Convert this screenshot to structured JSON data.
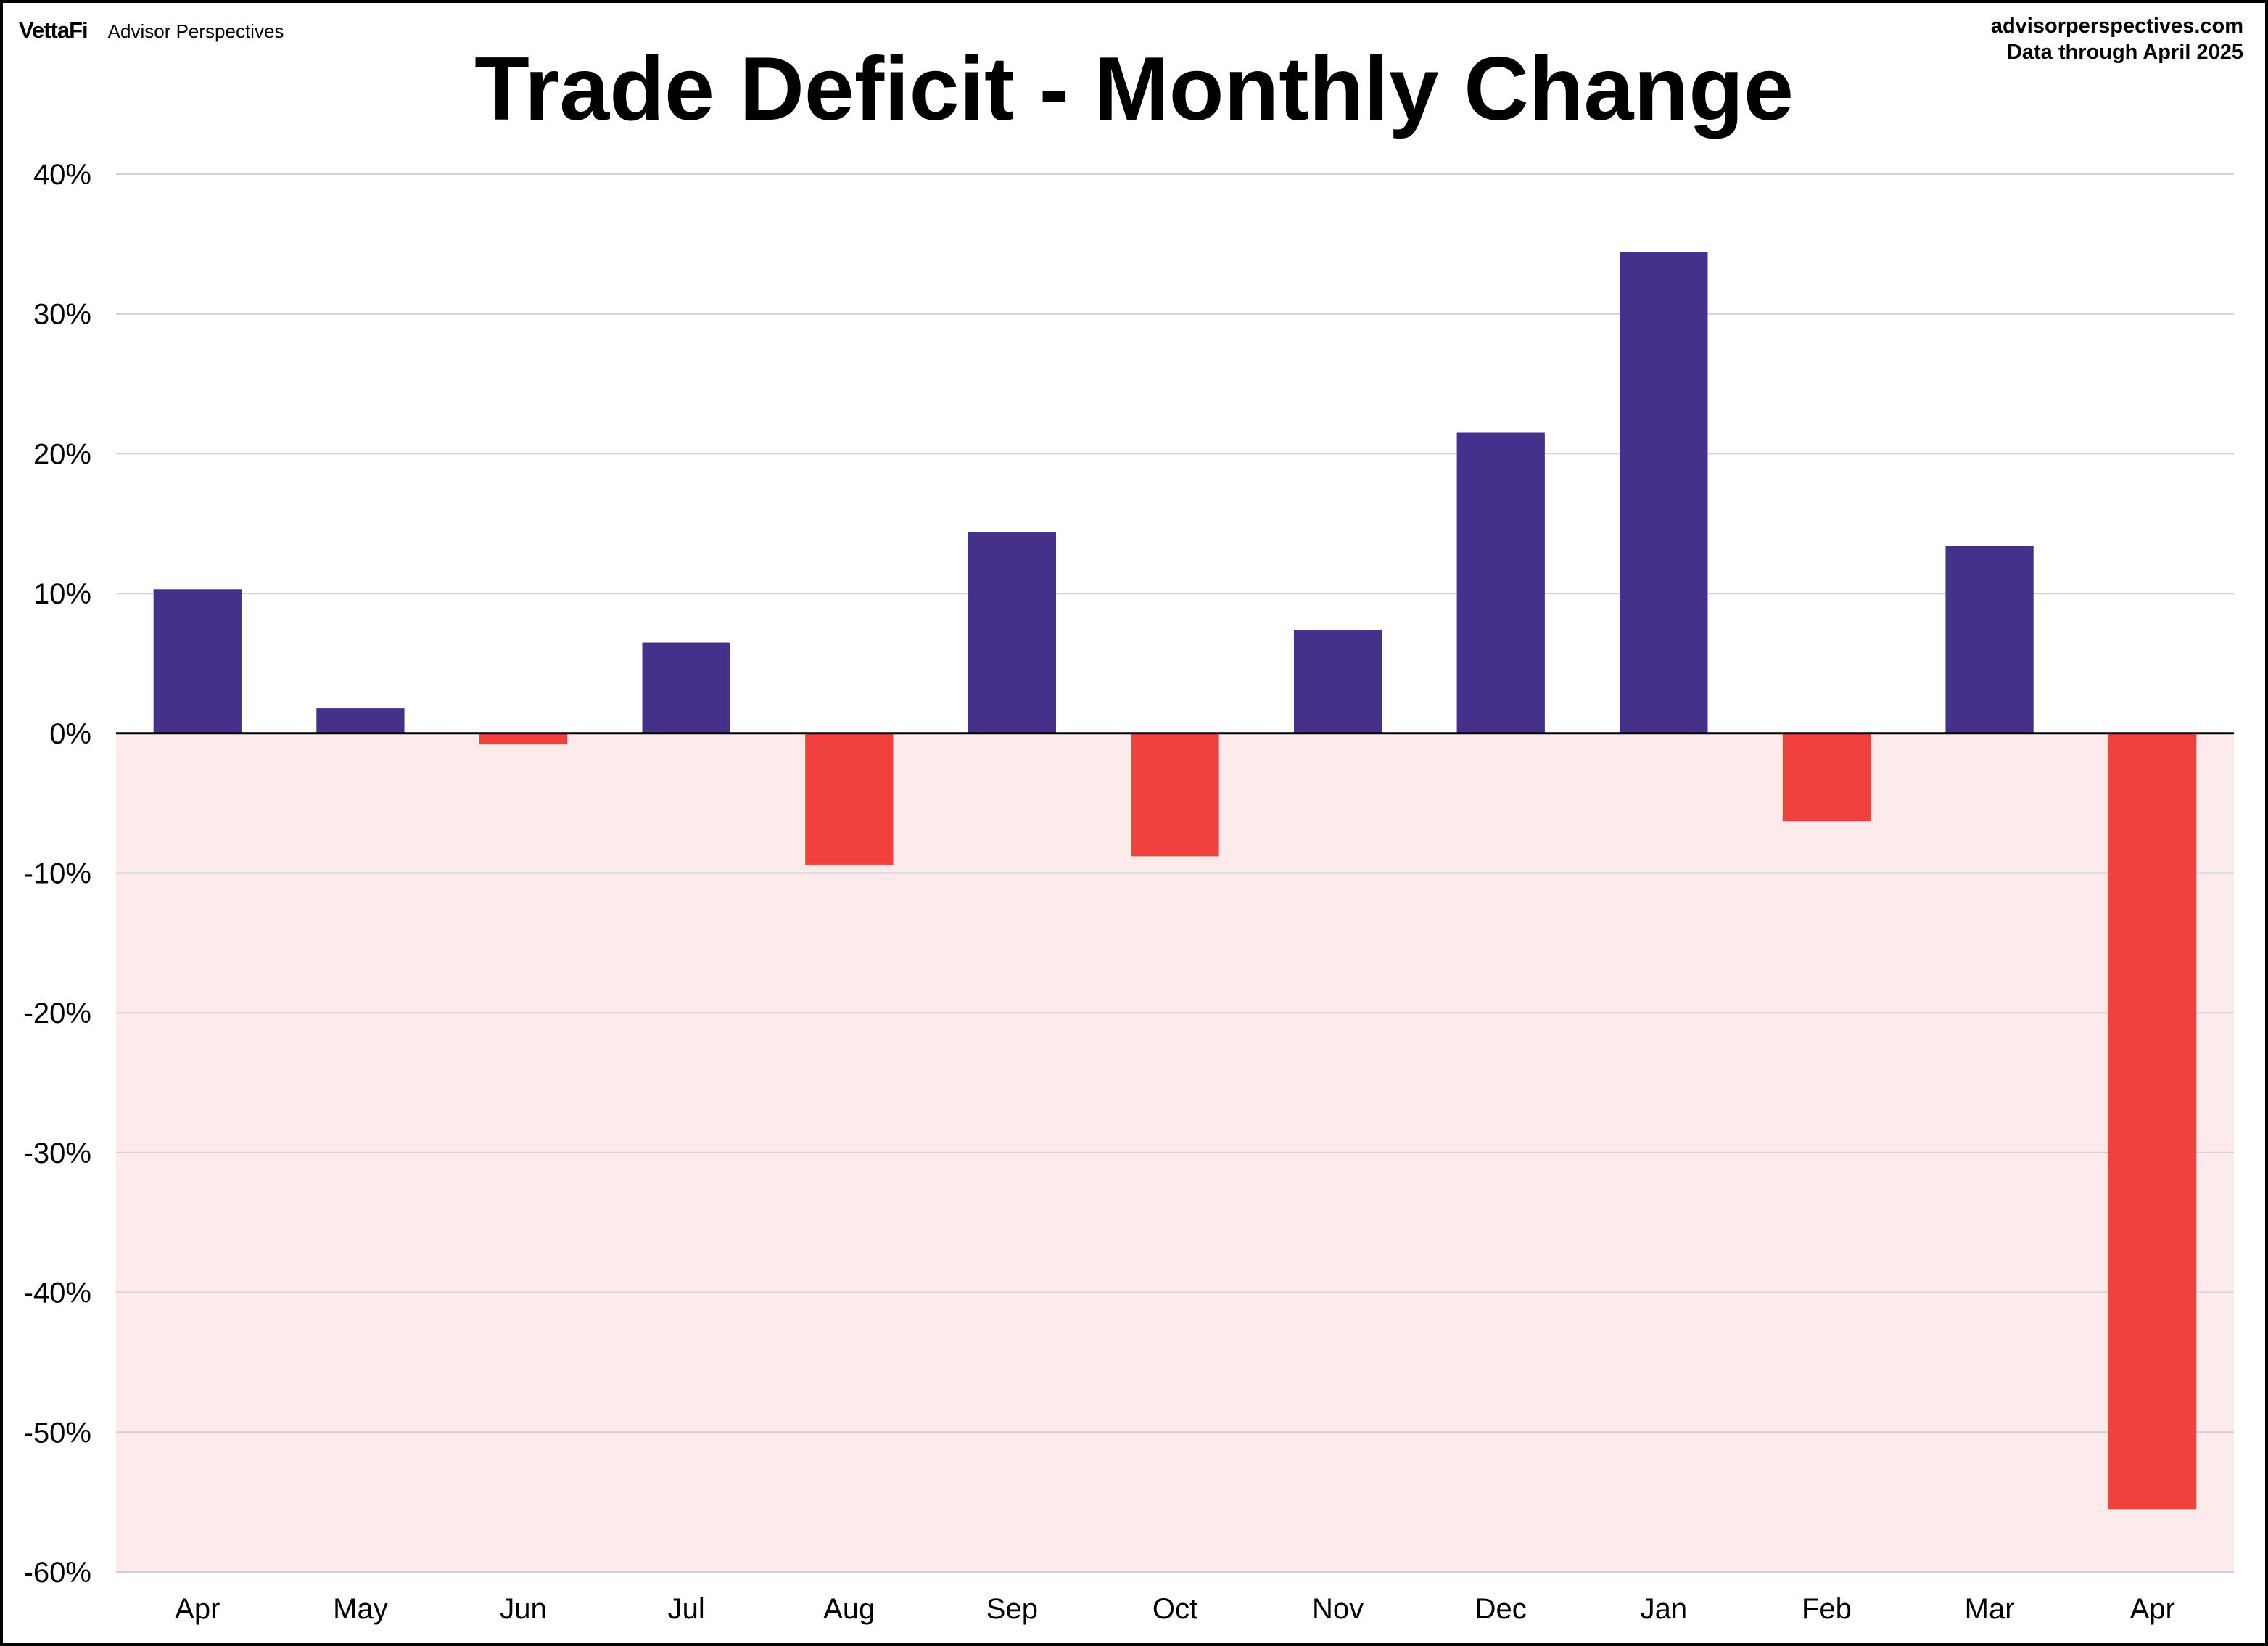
{
  "header": {
    "brand_logo": "VettaFi",
    "brand_name": "Advisor Perspectives",
    "source_url": "advisorperspectives.com",
    "source_note": "Data through April 2025"
  },
  "colors": {
    "positive": "#45318A",
    "negative": "#F0413C",
    "negative_region": "#FDEAEA",
    "gridline": "#D0D0D0",
    "zero_line": "#000000"
  },
  "chart_data": {
    "type": "bar",
    "title": "Trade Deficit - Monthly Change",
    "xlabel": "",
    "ylabel": "",
    "categories": [
      "Apr",
      "May",
      "Jun",
      "Jul",
      "Aug",
      "Sep",
      "Oct",
      "Nov",
      "Dec",
      "Jan",
      "Feb",
      "Mar",
      "Apr"
    ],
    "values": [
      10.3,
      1.8,
      -0.8,
      6.5,
      -9.4,
      14.4,
      -8.8,
      7.4,
      21.5,
      34.4,
      -6.3,
      13.4,
      -55.5
    ],
    "ylim": [
      -60,
      40
    ],
    "yticks": [
      40,
      30,
      20,
      10,
      0,
      -10,
      -20,
      -30,
      -40,
      -50,
      -60
    ],
    "ytick_labels": [
      "40%",
      "30%",
      "20%",
      "10%",
      "0%",
      "-10%",
      "-20%",
      "-30%",
      "-40%",
      "-50%",
      "-60%"
    ],
    "grid": true,
    "legend": "none"
  }
}
